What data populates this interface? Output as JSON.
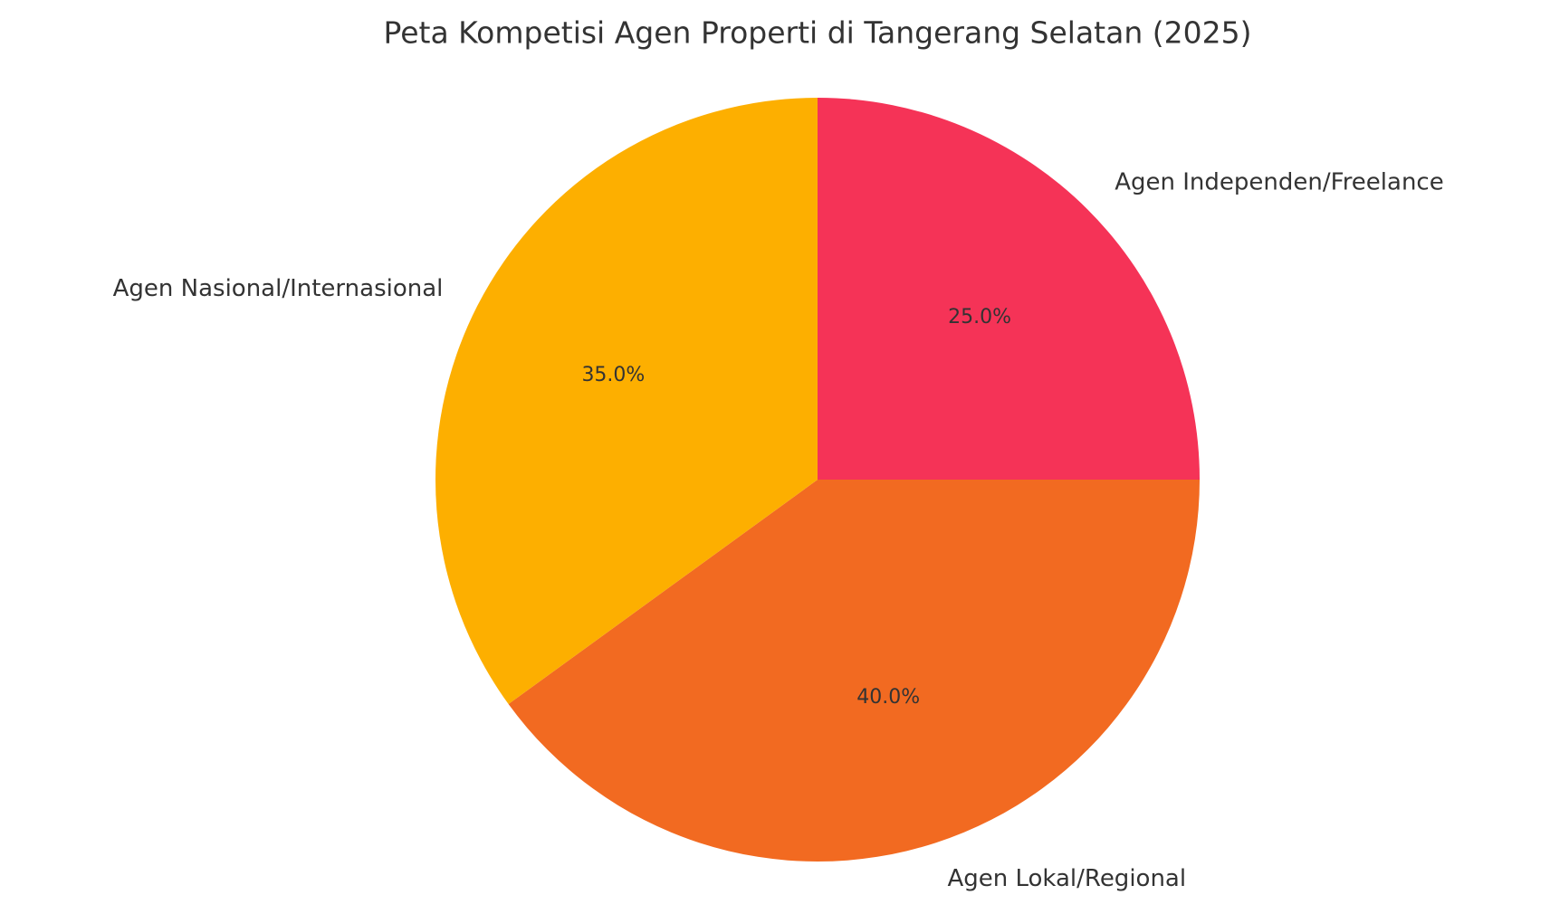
{
  "chart_data": {
    "type": "pie",
    "title": "Peta Kompetisi Agen Properti di Tangerang Selatan (2025)",
    "categories": [
      "Agen Independen/Freelance",
      "Agen Lokal/Regional",
      "Agen Nasional/Internasional"
    ],
    "values": [
      25,
      40,
      35
    ],
    "value_labels": [
      "25.0%",
      "40.0%",
      "35.0%"
    ],
    "colors": [
      "#f53357",
      "#f26a21",
      "#fdaf00"
    ]
  }
}
